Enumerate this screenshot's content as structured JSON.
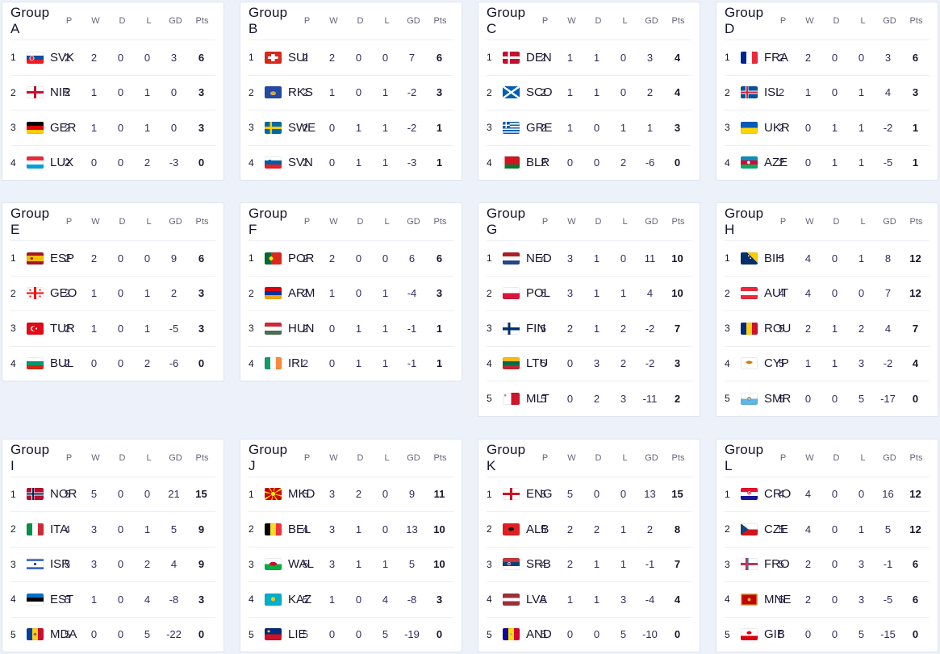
{
  "colors": {
    "page_bg": "#edf1f9",
    "card_bg": "#ffffff",
    "card_border": "#dfe4f0",
    "row_divider": "#eceef4",
    "text_primary": "#14142b",
    "text_stat": "#322c5a",
    "text_muted": "#65657a"
  },
  "columns": [
    "P",
    "W",
    "D",
    "L",
    "GD",
    "Pts"
  ],
  "groups": [
    {
      "title": "Group A",
      "rows": [
        {
          "pos": 1,
          "code": "SVK",
          "flag": "flag-svk-icon",
          "p": 2,
          "w": 2,
          "d": 0,
          "l": 0,
          "gd": 3,
          "pts": 6
        },
        {
          "pos": 2,
          "code": "NIR",
          "flag": "flag-nir-icon",
          "p": 2,
          "w": 1,
          "d": 0,
          "l": 1,
          "gd": 0,
          "pts": 3
        },
        {
          "pos": 3,
          "code": "GER",
          "flag": "flag-ger-icon",
          "p": 2,
          "w": 1,
          "d": 0,
          "l": 1,
          "gd": 0,
          "pts": 3
        },
        {
          "pos": 4,
          "code": "LUX",
          "flag": "flag-lux-icon",
          "p": 2,
          "w": 0,
          "d": 0,
          "l": 2,
          "gd": -3,
          "pts": 0
        }
      ]
    },
    {
      "title": "Group B",
      "rows": [
        {
          "pos": 1,
          "code": "SUI",
          "flag": "flag-sui-icon",
          "p": 2,
          "w": 2,
          "d": 0,
          "l": 0,
          "gd": 7,
          "pts": 6
        },
        {
          "pos": 2,
          "code": "RKS",
          "flag": "flag-rks-icon",
          "p": 2,
          "w": 1,
          "d": 0,
          "l": 1,
          "gd": -2,
          "pts": 3
        },
        {
          "pos": 3,
          "code": "SWE",
          "flag": "flag-swe-icon",
          "p": 2,
          "w": 0,
          "d": 1,
          "l": 1,
          "gd": -2,
          "pts": 1
        },
        {
          "pos": 4,
          "code": "SVN",
          "flag": "flag-svn-icon",
          "p": 2,
          "w": 0,
          "d": 1,
          "l": 1,
          "gd": -3,
          "pts": 1
        }
      ]
    },
    {
      "title": "Group C",
      "rows": [
        {
          "pos": 1,
          "code": "DEN",
          "flag": "flag-den-icon",
          "p": 2,
          "w": 1,
          "d": 1,
          "l": 0,
          "gd": 3,
          "pts": 4
        },
        {
          "pos": 2,
          "code": "SCO",
          "flag": "flag-sco-icon",
          "p": 2,
          "w": 1,
          "d": 1,
          "l": 0,
          "gd": 2,
          "pts": 4
        },
        {
          "pos": 3,
          "code": "GRE",
          "flag": "flag-gre-icon",
          "p": 2,
          "w": 1,
          "d": 0,
          "l": 1,
          "gd": 1,
          "pts": 3
        },
        {
          "pos": 4,
          "code": "BLR",
          "flag": "flag-blr-icon",
          "p": 2,
          "w": 0,
          "d": 0,
          "l": 2,
          "gd": -6,
          "pts": 0
        }
      ]
    },
    {
      "title": "Group D",
      "rows": [
        {
          "pos": 1,
          "code": "FRA",
          "flag": "flag-fra-icon",
          "p": 2,
          "w": 2,
          "d": 0,
          "l": 0,
          "gd": 3,
          "pts": 6
        },
        {
          "pos": 2,
          "code": "ISL",
          "flag": "flag-isl-icon",
          "p": 2,
          "w": 1,
          "d": 0,
          "l": 1,
          "gd": 4,
          "pts": 3
        },
        {
          "pos": 3,
          "code": "UKR",
          "flag": "flag-ukr-icon",
          "p": 2,
          "w": 0,
          "d": 1,
          "l": 1,
          "gd": -2,
          "pts": 1
        },
        {
          "pos": 4,
          "code": "AZE",
          "flag": "flag-aze-icon",
          "p": 2,
          "w": 0,
          "d": 1,
          "l": 1,
          "gd": -5,
          "pts": 1
        }
      ]
    },
    {
      "title": "Group E",
      "rows": [
        {
          "pos": 1,
          "code": "ESP",
          "flag": "flag-esp-icon",
          "p": 2,
          "w": 2,
          "d": 0,
          "l": 0,
          "gd": 9,
          "pts": 6
        },
        {
          "pos": 2,
          "code": "GEO",
          "flag": "flag-geo-icon",
          "p": 2,
          "w": 1,
          "d": 0,
          "l": 1,
          "gd": 2,
          "pts": 3
        },
        {
          "pos": 3,
          "code": "TUR",
          "flag": "flag-tur-icon",
          "p": 2,
          "w": 1,
          "d": 0,
          "l": 1,
          "gd": -5,
          "pts": 3
        },
        {
          "pos": 4,
          "code": "BUL",
          "flag": "flag-bul-icon",
          "p": 2,
          "w": 0,
          "d": 0,
          "l": 2,
          "gd": -6,
          "pts": 0
        }
      ]
    },
    {
      "title": "Group F",
      "rows": [
        {
          "pos": 1,
          "code": "POR",
          "flag": "flag-por-icon",
          "p": 2,
          "w": 2,
          "d": 0,
          "l": 0,
          "gd": 6,
          "pts": 6
        },
        {
          "pos": 2,
          "code": "ARM",
          "flag": "flag-arm-icon",
          "p": 2,
          "w": 1,
          "d": 0,
          "l": 1,
          "gd": -4,
          "pts": 3
        },
        {
          "pos": 3,
          "code": "HUN",
          "flag": "flag-hun-icon",
          "p": 2,
          "w": 0,
          "d": 1,
          "l": 1,
          "gd": -1,
          "pts": 1
        },
        {
          "pos": 4,
          "code": "IRL",
          "flag": "flag-irl-icon",
          "p": 2,
          "w": 0,
          "d": 1,
          "l": 1,
          "gd": -1,
          "pts": 1
        }
      ]
    },
    {
      "title": "Group G",
      "rows": [
        {
          "pos": 1,
          "code": "NED",
          "flag": "flag-ned-icon",
          "p": 4,
          "w": 3,
          "d": 1,
          "l": 0,
          "gd": 11,
          "pts": 10
        },
        {
          "pos": 2,
          "code": "POL",
          "flag": "flag-pol-icon",
          "p": 5,
          "w": 3,
          "d": 1,
          "l": 1,
          "gd": 4,
          "pts": 10
        },
        {
          "pos": 3,
          "code": "FIN",
          "flag": "flag-fin-icon",
          "p": 5,
          "w": 2,
          "d": 1,
          "l": 2,
          "gd": -2,
          "pts": 7
        },
        {
          "pos": 4,
          "code": "LTU",
          "flag": "flag-ltu-icon",
          "p": 5,
          "w": 0,
          "d": 3,
          "l": 2,
          "gd": -2,
          "pts": 3
        },
        {
          "pos": 5,
          "code": "MLT",
          "flag": "flag-mlt-icon",
          "p": 5,
          "w": 0,
          "d": 2,
          "l": 3,
          "gd": -11,
          "pts": 2
        }
      ]
    },
    {
      "title": "Group H",
      "rows": [
        {
          "pos": 1,
          "code": "BIH",
          "flag": "flag-bih-icon",
          "p": 5,
          "w": 4,
          "d": 0,
          "l": 1,
          "gd": 8,
          "pts": 12
        },
        {
          "pos": 2,
          "code": "AUT",
          "flag": "flag-aut-icon",
          "p": 4,
          "w": 4,
          "d": 0,
          "l": 0,
          "gd": 7,
          "pts": 12
        },
        {
          "pos": 3,
          "code": "ROU",
          "flag": "flag-rou-icon",
          "p": 5,
          "w": 2,
          "d": 1,
          "l": 2,
          "gd": 4,
          "pts": 7
        },
        {
          "pos": 4,
          "code": "CYP",
          "flag": "flag-cyp-icon",
          "p": 5,
          "w": 1,
          "d": 1,
          "l": 3,
          "gd": -2,
          "pts": 4
        },
        {
          "pos": 5,
          "code": "SMR",
          "flag": "flag-smr-icon",
          "p": 5,
          "w": 0,
          "d": 0,
          "l": 5,
          "gd": -17,
          "pts": 0
        }
      ]
    },
    {
      "title": "Group I",
      "rows": [
        {
          "pos": 1,
          "code": "NOR",
          "flag": "flag-nor-icon",
          "p": 5,
          "w": 5,
          "d": 0,
          "l": 0,
          "gd": 21,
          "pts": 15
        },
        {
          "pos": 2,
          "code": "ITA",
          "flag": "flag-ita-icon",
          "p": 4,
          "w": 3,
          "d": 0,
          "l": 1,
          "gd": 5,
          "pts": 9
        },
        {
          "pos": 3,
          "code": "ISR",
          "flag": "flag-isr-icon",
          "p": 5,
          "w": 3,
          "d": 0,
          "l": 2,
          "gd": 4,
          "pts": 9
        },
        {
          "pos": 4,
          "code": "EST",
          "flag": "flag-est-icon",
          "p": 5,
          "w": 1,
          "d": 0,
          "l": 4,
          "gd": -8,
          "pts": 3
        },
        {
          "pos": 5,
          "code": "MDA",
          "flag": "flag-mda-icon",
          "p": 5,
          "w": 0,
          "d": 0,
          "l": 5,
          "gd": -22,
          "pts": 0
        }
      ]
    },
    {
      "title": "Group J",
      "rows": [
        {
          "pos": 1,
          "code": "MKD",
          "flag": "flag-mkd-icon",
          "p": 5,
          "w": 3,
          "d": 2,
          "l": 0,
          "gd": 9,
          "pts": 11
        },
        {
          "pos": 2,
          "code": "BEL",
          "flag": "flag-bel-icon",
          "p": 4,
          "w": 3,
          "d": 1,
          "l": 0,
          "gd": 13,
          "pts": 10
        },
        {
          "pos": 3,
          "code": "WAL",
          "flag": "flag-wal-icon",
          "p": 5,
          "w": 3,
          "d": 1,
          "l": 1,
          "gd": 5,
          "pts": 10
        },
        {
          "pos": 4,
          "code": "KAZ",
          "flag": "flag-kaz-icon",
          "p": 5,
          "w": 1,
          "d": 0,
          "l": 4,
          "gd": -8,
          "pts": 3
        },
        {
          "pos": 5,
          "code": "LIE",
          "flag": "flag-lie-icon",
          "p": 5,
          "w": 0,
          "d": 0,
          "l": 5,
          "gd": -19,
          "pts": 0
        }
      ]
    },
    {
      "title": "Group K",
      "rows": [
        {
          "pos": 1,
          "code": "ENG",
          "flag": "flag-eng-icon",
          "p": 5,
          "w": 5,
          "d": 0,
          "l": 0,
          "gd": 13,
          "pts": 15
        },
        {
          "pos": 2,
          "code": "ALB",
          "flag": "flag-alb-icon",
          "p": 5,
          "w": 2,
          "d": 2,
          "l": 1,
          "gd": 2,
          "pts": 8
        },
        {
          "pos": 3,
          "code": "SRB",
          "flag": "flag-srb-icon",
          "p": 4,
          "w": 2,
          "d": 1,
          "l": 1,
          "gd": -1,
          "pts": 7
        },
        {
          "pos": 4,
          "code": "LVA",
          "flag": "flag-lva-icon",
          "p": 5,
          "w": 1,
          "d": 1,
          "l": 3,
          "gd": -4,
          "pts": 4
        },
        {
          "pos": 5,
          "code": "AND",
          "flag": "flag-and-icon",
          "p": 5,
          "w": 0,
          "d": 0,
          "l": 5,
          "gd": -10,
          "pts": 0
        }
      ]
    },
    {
      "title": "Group L",
      "rows": [
        {
          "pos": 1,
          "code": "CRO",
          "flag": "flag-cro-icon",
          "p": 4,
          "w": 4,
          "d": 0,
          "l": 0,
          "gd": 16,
          "pts": 12
        },
        {
          "pos": 2,
          "code": "CZE",
          "flag": "flag-cze-icon",
          "p": 5,
          "w": 4,
          "d": 0,
          "l": 1,
          "gd": 5,
          "pts": 12
        },
        {
          "pos": 3,
          "code": "FRO",
          "flag": "flag-fro-icon",
          "p": 5,
          "w": 2,
          "d": 0,
          "l": 3,
          "gd": -1,
          "pts": 6
        },
        {
          "pos": 4,
          "code": "MNE",
          "flag": "flag-mne-icon",
          "p": 5,
          "w": 2,
          "d": 0,
          "l": 3,
          "gd": -5,
          "pts": 6
        },
        {
          "pos": 5,
          "code": "GIB",
          "flag": "flag-gib-icon",
          "p": 5,
          "w": 0,
          "d": 0,
          "l": 5,
          "gd": -15,
          "pts": 0
        }
      ]
    }
  ]
}
